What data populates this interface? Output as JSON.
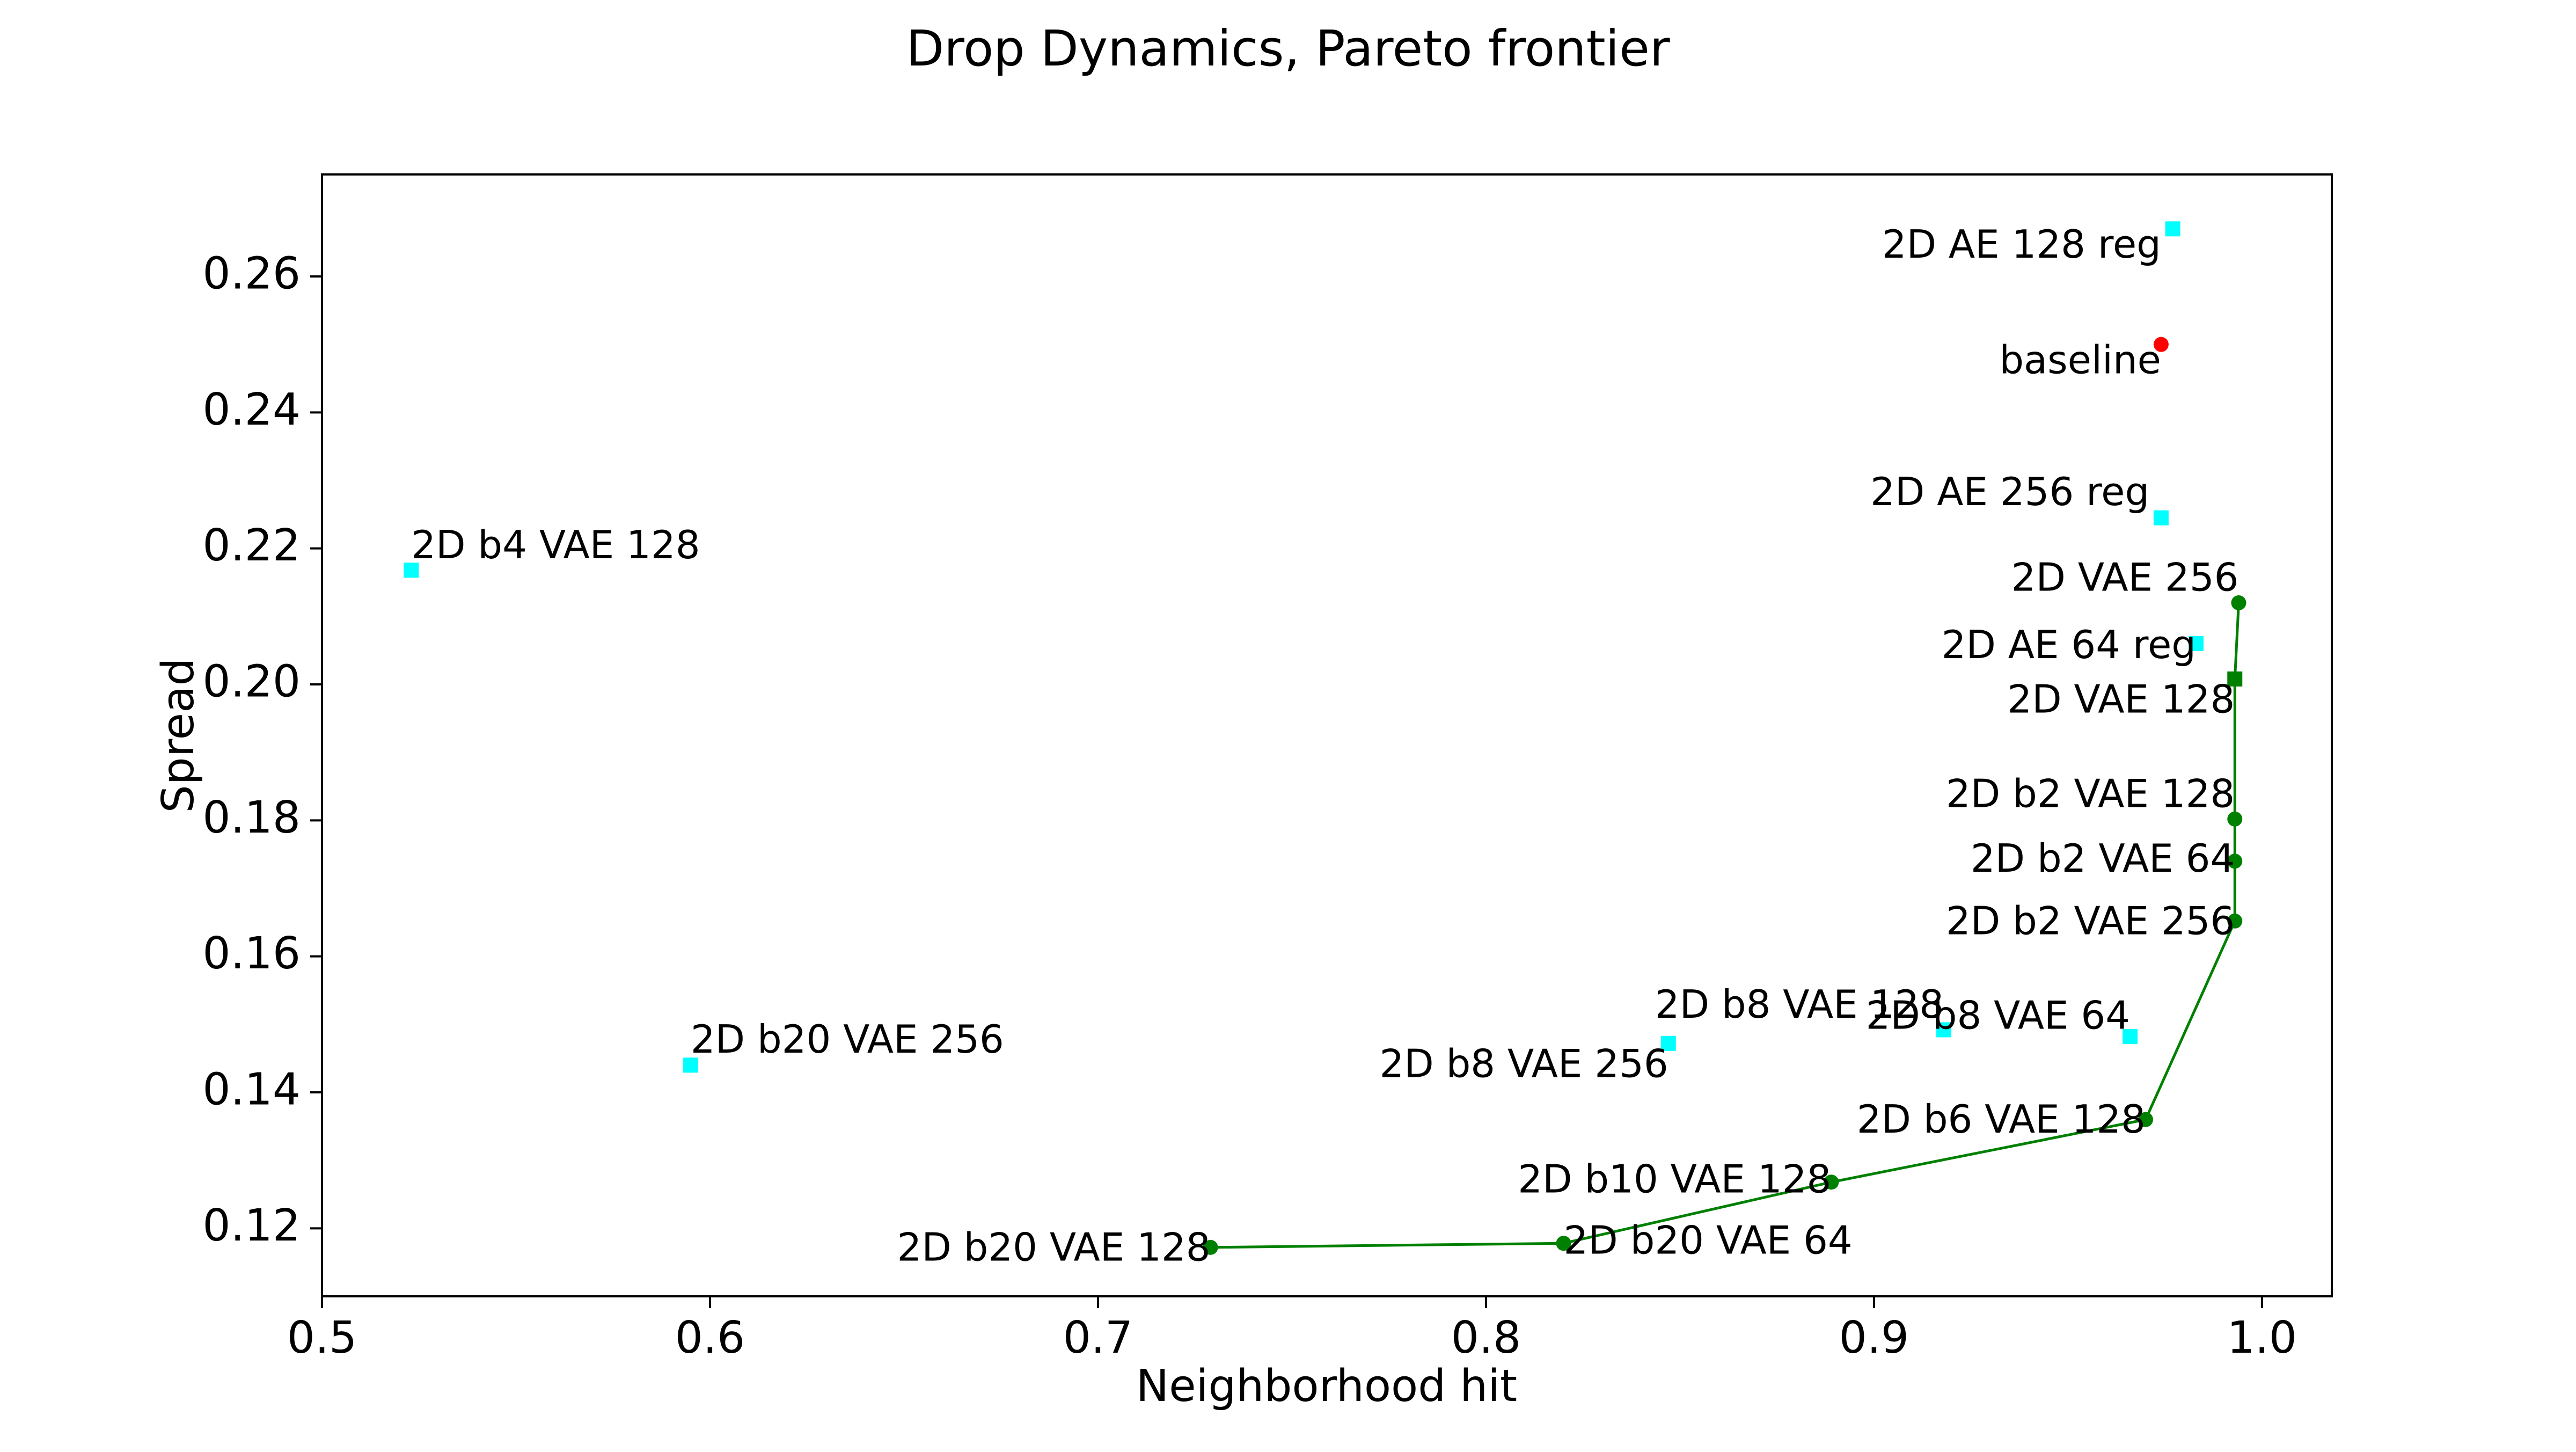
{
  "chart_data": {
    "type": "scatter",
    "title": "Drop Dynamics, Pareto frontier",
    "xlabel": "Neighborhood hit",
    "ylabel": "Spread",
    "xlim": [
      0.5,
      1.018
    ],
    "ylim": [
      0.11,
      0.275
    ],
    "xticks": [
      0.5,
      0.6,
      0.7,
      0.8,
      0.9,
      1.0
    ],
    "xtick_labels": [
      "0.5",
      "0.6",
      "0.7",
      "0.8",
      "0.9",
      "1.0"
    ],
    "yticks": [
      0.12,
      0.14,
      0.16,
      0.18,
      0.2,
      0.22,
      0.24,
      0.26
    ],
    "ytick_labels": [
      "0.12",
      "0.14",
      "0.16",
      "0.18",
      "0.20",
      "0.22",
      "0.24",
      "0.26"
    ],
    "grid": false,
    "legend": "none",
    "colors": {
      "frontier": "#008000",
      "other": "#00ffff",
      "baseline": "#ff0000"
    },
    "points": [
      {
        "label": "2D AE 128 reg",
        "x": 0.977,
        "y": 0.267,
        "group": "other",
        "marker": "square",
        "anchor": "end",
        "dx": -0.003,
        "dy": -0.0027
      },
      {
        "label": "baseline",
        "x": 0.974,
        "y": 0.25,
        "group": "baseline",
        "marker": "circle",
        "anchor": "end",
        "dx": 0.0,
        "dy": -0.0027
      },
      {
        "label": "2D AE 256 reg",
        "x": 0.974,
        "y": 0.2245,
        "group": "other",
        "marker": "square",
        "anchor": "end",
        "dx": -0.003,
        "dy": 0.0034
      },
      {
        "label": "2D b4 VAE 128",
        "x": 0.523,
        "y": 0.2168,
        "group": "other",
        "marker": "square",
        "anchor": "start",
        "dx": 0.0,
        "dy": 0.0033
      },
      {
        "label": "2D VAE 256",
        "x": 0.994,
        "y": 0.212,
        "group": "frontier",
        "marker": "circle",
        "anchor": "end",
        "dx": 0.0,
        "dy": 0.0033
      },
      {
        "label": "2D AE 64 reg",
        "x": 0.983,
        "y": 0.206,
        "group": "other",
        "marker": "square",
        "anchor": "end",
        "dx": 0.0,
        "dy": -0.0006
      },
      {
        "label": "2D VAE 128",
        "x": 0.993,
        "y": 0.2008,
        "group": "frontier",
        "marker": "square",
        "anchor": "end",
        "dx": 0.0,
        "dy": -0.0034
      },
      {
        "label": "2D b2 VAE 128",
        "x": 0.993,
        "y": 0.1802,
        "group": "frontier",
        "marker": "circle",
        "anchor": "end",
        "dx": 0.0,
        "dy": 0.0033
      },
      {
        "label": "2D b2 VAE 64",
        "x": 0.993,
        "y": 0.174,
        "group": "frontier",
        "marker": "circle",
        "anchor": "end",
        "dx": 0.0,
        "dy": 0.0
      },
      {
        "label": "2D b2 VAE 256",
        "x": 0.993,
        "y": 0.1652,
        "group": "frontier",
        "marker": "circle",
        "anchor": "end",
        "dx": 0.0,
        "dy": -0.0004
      },
      {
        "label": "2D b8 VAE 128",
        "x": 0.918,
        "y": 0.1492,
        "group": "other",
        "marker": "square",
        "anchor": "end",
        "dx": 0.0,
        "dy": 0.0033
      },
      {
        "label": "2D b8 VAE 64",
        "x": 0.966,
        "y": 0.1482,
        "group": "other",
        "marker": "square",
        "anchor": "end",
        "dx": 0.0,
        "dy": 0.0027
      },
      {
        "label": "2D b8 VAE 256",
        "x": 0.847,
        "y": 0.1472,
        "group": "other",
        "marker": "square",
        "anchor": "end",
        "dx": 0.0,
        "dy": -0.0034
      },
      {
        "label": "2D b20 VAE 256",
        "x": 0.595,
        "y": 0.144,
        "group": "other",
        "marker": "square",
        "anchor": "start",
        "dx": 0.0,
        "dy": 0.0034
      },
      {
        "label": "2D b6 VAE 128",
        "x": 0.97,
        "y": 0.136,
        "group": "frontier",
        "marker": "circle",
        "anchor": "end",
        "dx": 0.0,
        "dy": -0.0004
      },
      {
        "label": "2D b10 VAE 128",
        "x": 0.889,
        "y": 0.1268,
        "group": "frontier",
        "marker": "circle",
        "anchor": "end",
        "dx": 0.0,
        "dy": 0.0
      },
      {
        "label": "2D b20 VAE 64",
        "x": 0.82,
        "y": 0.1178,
        "group": "frontier",
        "marker": "circle",
        "anchor": "start",
        "dx": 0.0,
        "dy": 0.0
      },
      {
        "label": "2D b20 VAE 128",
        "x": 0.729,
        "y": 0.1172,
        "group": "frontier",
        "marker": "circle",
        "anchor": "end",
        "dx": 0.0,
        "dy": -0.0004
      }
    ],
    "frontier_line": {
      "x": [
        0.729,
        0.82,
        0.889,
        0.97,
        0.993,
        0.993,
        0.993,
        0.993,
        0.994
      ],
      "y": [
        0.1172,
        0.1178,
        0.1268,
        0.136,
        0.1652,
        0.174,
        0.1802,
        0.2008,
        0.212
      ]
    }
  }
}
